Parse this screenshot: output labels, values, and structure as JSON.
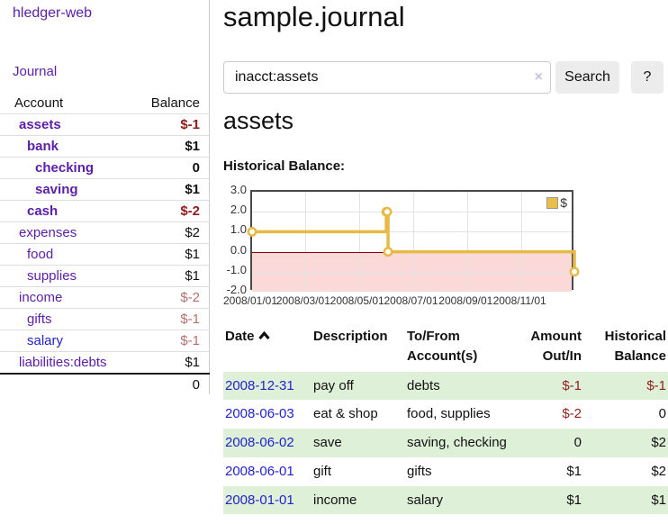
{
  "app": {
    "brand": "hledger-web",
    "nav": {
      "journal": "Journal"
    }
  },
  "sidebar": {
    "columns": {
      "account": "Account",
      "balance": "Balance"
    },
    "accounts": [
      {
        "name": "assets",
        "balance": "$-1",
        "level": 1,
        "bold": true,
        "neg": "strong"
      },
      {
        "name": "bank",
        "balance": "$1",
        "level": 2,
        "bold": true,
        "neg": "none"
      },
      {
        "name": "checking",
        "balance": "0",
        "level": 3,
        "bold": true,
        "neg": "none"
      },
      {
        "name": "saving",
        "balance": "$1",
        "level": 3,
        "bold": true,
        "neg": "none"
      },
      {
        "name": "cash",
        "balance": "$-2",
        "level": 2,
        "bold": true,
        "neg": "strong"
      },
      {
        "name": "expenses",
        "balance": "$2",
        "level": 1,
        "bold": false,
        "neg": "none"
      },
      {
        "name": "food",
        "balance": "$1",
        "level": 2,
        "bold": false,
        "neg": "none"
      },
      {
        "name": "supplies",
        "balance": "$1",
        "level": 2,
        "bold": false,
        "neg": "none"
      },
      {
        "name": "income",
        "balance": "$-2",
        "level": 1,
        "bold": false,
        "neg": "weak"
      },
      {
        "name": "gifts",
        "balance": "$-1",
        "level": 2,
        "bold": false,
        "neg": "weak"
      },
      {
        "name": "salary",
        "balance": "$-1",
        "level": 2,
        "bold": false,
        "neg": "weak",
        "link_color": "blue"
      },
      {
        "name": "liabilities:debts",
        "balance": "$1",
        "level": 1,
        "bold": false,
        "neg": "none"
      }
    ],
    "total": "0"
  },
  "main": {
    "title": "sample.journal",
    "search": {
      "value": "inacct:assets",
      "clear_icon": "×",
      "button": "Search",
      "help_button": "?"
    },
    "account_heading": "assets",
    "chart_label": "Historical Balance:"
  },
  "chart_data": {
    "type": "line",
    "step": true,
    "title": "Historical Balance",
    "series": [
      {
        "name": "$",
        "color": "#e7ba47",
        "points": [
          [
            "2008-01-01",
            1
          ],
          [
            "2008-06-01",
            2
          ],
          [
            "2008-06-02",
            2
          ],
          [
            "2008-06-03",
            0
          ],
          [
            "2008-12-31",
            -1
          ]
        ]
      }
    ],
    "x_range": [
      "2008-01-01",
      "2009-01-01"
    ],
    "ylim": [
      -2.0,
      3.0
    ],
    "yticks": [
      "3.0",
      "2.0",
      "1.0",
      "0.0",
      "-1.0",
      "-2.0"
    ],
    "ytick_values": [
      3,
      2,
      1,
      0,
      -1,
      -2
    ],
    "xticks": [
      "2008/01/01",
      "2008/03/01",
      "2008/05/01",
      "2008/07/01",
      "2008/09/01",
      "2008/11/01"
    ],
    "xtick_dates": [
      "2008-01-01",
      "2008-03-01",
      "2008-05-01",
      "2008-07-01",
      "2008-09-01",
      "2008-11-01"
    ],
    "grid": true,
    "negative_region_color": "#fbd9d9",
    "zero_line_color": "#8b0000",
    "legend": {
      "position": "top-right",
      "label": "$",
      "swatch_color": "#e9bf45"
    }
  },
  "register": {
    "headers": {
      "date": "Date",
      "description": "Description",
      "tofrom": [
        "To/From",
        "Account(s)"
      ],
      "amount": [
        "Amount",
        "Out/In"
      ],
      "balance": [
        "Historical",
        "Balance"
      ]
    },
    "sort": {
      "column": "date",
      "direction": "ascending"
    },
    "rows": [
      {
        "date": "2008-12-31",
        "description": "pay off",
        "accounts": "debts",
        "amount": "$-1",
        "balance": "$-1",
        "amount_neg": true,
        "balance_neg": true,
        "highlight": true
      },
      {
        "date": "2008-06-03",
        "description": "eat & shop",
        "accounts": "food, supplies",
        "amount": "$-2",
        "balance": "0",
        "amount_neg": true,
        "balance_neg": false,
        "highlight": false
      },
      {
        "date": "2008-06-02",
        "description": "save",
        "accounts": "saving, checking",
        "amount": "0",
        "balance": "$2",
        "amount_neg": false,
        "balance_neg": false,
        "highlight": true
      },
      {
        "date": "2008-06-01",
        "description": "gift",
        "accounts": "gifts",
        "amount": "$1",
        "balance": "$2",
        "amount_neg": false,
        "balance_neg": false,
        "highlight": false
      },
      {
        "date": "2008-01-01",
        "description": "income",
        "accounts": "salary",
        "amount": "$1",
        "balance": "$1",
        "amount_neg": false,
        "balance_neg": false,
        "highlight": true
      }
    ]
  }
}
